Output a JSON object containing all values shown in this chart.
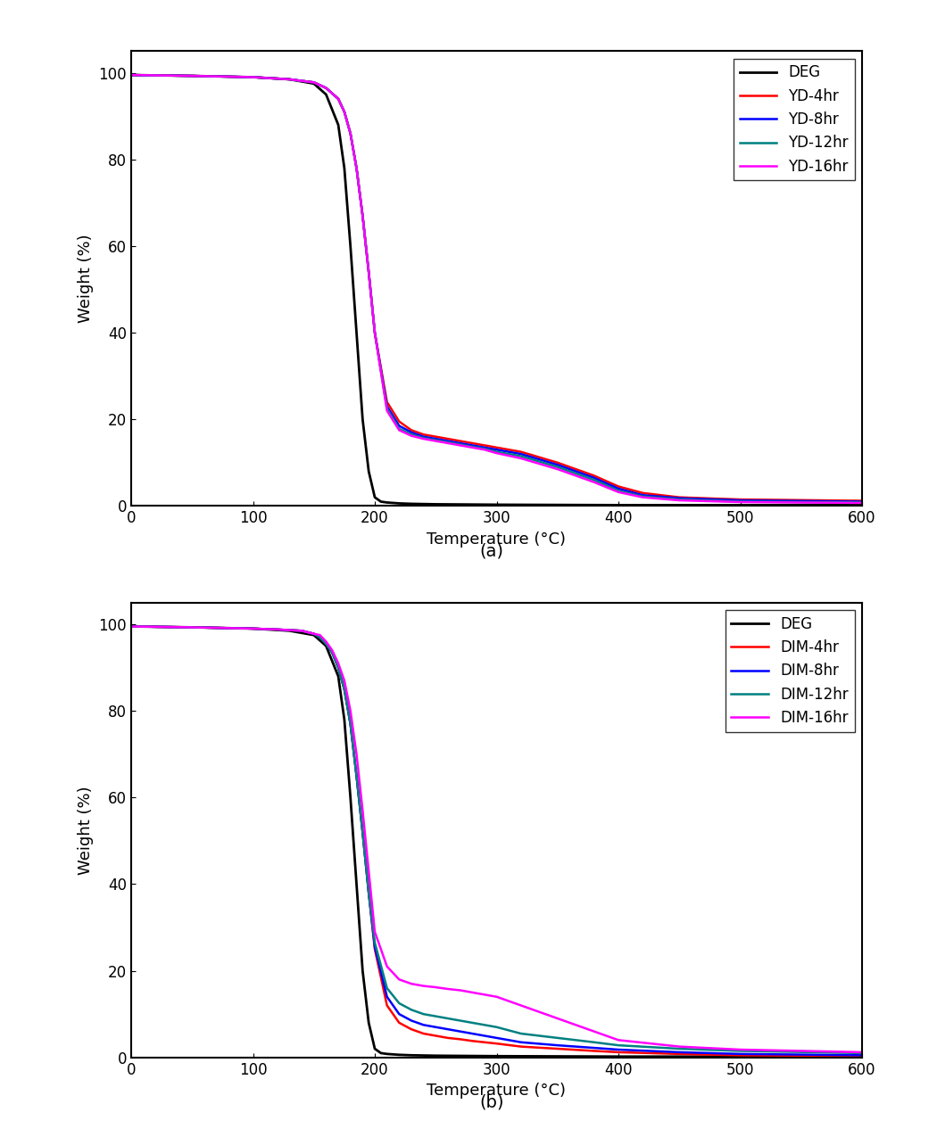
{
  "subplot_a": {
    "title": "(a)",
    "xlabel": "Temperature (°C)",
    "ylabel": "Weight (%)",
    "xlim": [
      0,
      600
    ],
    "ylim": [
      0,
      105
    ],
    "yticks": [
      0,
      20,
      40,
      60,
      80,
      100
    ],
    "xticks": [
      0,
      100,
      200,
      300,
      400,
      500,
      600
    ],
    "legend": [
      "DEG",
      "YD-4hr",
      "YD-8hr",
      "YD-12hr",
      "YD-16hr"
    ],
    "colors": [
      "#000000",
      "#ff0000",
      "#0000ff",
      "#008080",
      "#ff00ff"
    ],
    "line_widths": [
      2.0,
      1.8,
      1.8,
      1.8,
      1.8
    ],
    "DEG": {
      "x": [
        0,
        50,
        100,
        130,
        150,
        160,
        170,
        175,
        180,
        185,
        190,
        195,
        200,
        205,
        210,
        220,
        230,
        250,
        300,
        400,
        500,
        600
      ],
      "y": [
        99.5,
        99.3,
        99.0,
        98.5,
        97.5,
        95.0,
        88.0,
        78.0,
        60.0,
        40.0,
        20.0,
        8.0,
        2.0,
        1.0,
        0.8,
        0.6,
        0.5,
        0.4,
        0.3,
        0.2,
        0.2,
        0.2
      ]
    },
    "YD4": {
      "x": [
        0,
        50,
        100,
        130,
        150,
        160,
        170,
        175,
        180,
        185,
        190,
        195,
        200,
        210,
        220,
        230,
        240,
        250,
        260,
        270,
        280,
        290,
        300,
        320,
        350,
        380,
        400,
        420,
        450,
        500,
        600
      ],
      "y": [
        99.5,
        99.3,
        99.0,
        98.5,
        97.8,
        96.5,
        94.0,
        91.0,
        86.0,
        78.0,
        67.0,
        54.0,
        40.0,
        24.0,
        19.5,
        17.5,
        16.5,
        16.0,
        15.5,
        15.0,
        14.5,
        14.0,
        13.5,
        12.5,
        10.0,
        7.0,
        4.5,
        3.0,
        2.0,
        1.5,
        1.2
      ]
    },
    "YD8": {
      "x": [
        0,
        50,
        100,
        130,
        150,
        160,
        170,
        175,
        180,
        185,
        190,
        195,
        200,
        210,
        220,
        230,
        240,
        250,
        260,
        270,
        280,
        290,
        300,
        320,
        350,
        380,
        400,
        420,
        450,
        500,
        600
      ],
      "y": [
        99.5,
        99.3,
        99.0,
        98.5,
        97.8,
        96.5,
        94.0,
        91.0,
        86.0,
        78.0,
        67.0,
        54.0,
        40.0,
        23.0,
        18.5,
        17.0,
        16.0,
        15.5,
        15.0,
        14.5,
        14.0,
        13.5,
        13.0,
        12.0,
        9.5,
        6.5,
        4.0,
        2.5,
        1.8,
        1.3,
        1.0
      ]
    },
    "YD12": {
      "x": [
        0,
        50,
        100,
        130,
        150,
        160,
        170,
        175,
        180,
        185,
        190,
        195,
        200,
        210,
        220,
        230,
        240,
        250,
        260,
        270,
        280,
        290,
        300,
        320,
        350,
        380,
        400,
        420,
        450,
        500,
        600
      ],
      "y": [
        99.5,
        99.3,
        99.0,
        98.5,
        97.8,
        96.5,
        94.0,
        91.0,
        86.0,
        78.0,
        67.0,
        54.0,
        40.0,
        22.5,
        17.8,
        16.5,
        15.7,
        15.2,
        14.7,
        14.2,
        13.7,
        13.2,
        12.5,
        11.5,
        9.0,
        6.0,
        3.5,
        2.2,
        1.5,
        1.0,
        0.8
      ]
    },
    "YD16": {
      "x": [
        0,
        50,
        100,
        130,
        150,
        160,
        170,
        175,
        180,
        185,
        190,
        195,
        200,
        210,
        220,
        230,
        240,
        250,
        260,
        270,
        280,
        290,
        300,
        320,
        350,
        380,
        400,
        420,
        450,
        500,
        600
      ],
      "y": [
        99.5,
        99.3,
        99.0,
        98.5,
        97.8,
        96.5,
        94.0,
        91.0,
        86.0,
        78.0,
        67.0,
        54.0,
        40.0,
        22.0,
        17.5,
        16.2,
        15.5,
        15.0,
        14.5,
        14.0,
        13.5,
        13.0,
        12.2,
        11.0,
        8.5,
        5.5,
        3.2,
        2.0,
        1.3,
        0.9,
        0.7
      ]
    }
  },
  "subplot_b": {
    "title": "(b)",
    "xlabel": "Temperature (°C)",
    "ylabel": "Weight (%)",
    "xlim": [
      0,
      600
    ],
    "ylim": [
      0,
      105
    ],
    "yticks": [
      0,
      20,
      40,
      60,
      80,
      100
    ],
    "xticks": [
      0,
      100,
      200,
      300,
      400,
      500,
      600
    ],
    "legend": [
      "DEG",
      "DIM-4hr",
      "DIM-8hr",
      "DIM-12hr",
      "DIM-16hr"
    ],
    "colors": [
      "#000000",
      "#ff0000",
      "#0000ff",
      "#008080",
      "#ff00ff"
    ],
    "line_widths": [
      2.0,
      1.8,
      1.8,
      1.8,
      1.8
    ],
    "DEG": {
      "x": [
        0,
        50,
        100,
        130,
        150,
        160,
        170,
        175,
        180,
        185,
        190,
        195,
        200,
        205,
        210,
        220,
        230,
        250,
        300,
        400,
        500,
        600
      ],
      "y": [
        99.5,
        99.3,
        99.0,
        98.5,
        97.5,
        95.0,
        88.0,
        78.0,
        60.0,
        40.0,
        20.0,
        8.0,
        2.0,
        1.0,
        0.8,
        0.6,
        0.5,
        0.4,
        0.3,
        0.2,
        0.2,
        0.2
      ]
    },
    "DIM4": {
      "x": [
        0,
        50,
        100,
        120,
        140,
        150,
        155,
        160,
        165,
        170,
        175,
        180,
        185,
        190,
        195,
        200,
        210,
        220,
        230,
        240,
        250,
        260,
        270,
        280,
        290,
        300,
        320,
        350,
        380,
        400,
        450,
        500,
        600
      ],
      "y": [
        99.5,
        99.3,
        99.0,
        98.8,
        98.5,
        97.8,
        97.0,
        95.5,
        93.5,
        90.0,
        85.0,
        77.0,
        65.0,
        52.0,
        38.0,
        25.0,
        12.0,
        8.0,
        6.5,
        5.5,
        5.0,
        4.5,
        4.2,
        3.8,
        3.5,
        3.2,
        2.5,
        2.0,
        1.5,
        1.2,
        0.8,
        0.5,
        0.3
      ]
    },
    "DIM8": {
      "x": [
        0,
        50,
        100,
        120,
        140,
        150,
        155,
        160,
        165,
        170,
        175,
        180,
        185,
        190,
        195,
        200,
        210,
        220,
        230,
        240,
        250,
        260,
        270,
        280,
        290,
        300,
        320,
        350,
        380,
        400,
        450,
        500,
        600
      ],
      "y": [
        99.5,
        99.3,
        99.0,
        98.8,
        98.5,
        97.8,
        97.0,
        95.5,
        93.5,
        90.0,
        85.0,
        77.0,
        65.0,
        52.0,
        38.0,
        25.5,
        14.0,
        10.0,
        8.5,
        7.5,
        7.0,
        6.5,
        6.0,
        5.5,
        5.0,
        4.5,
        3.5,
        2.8,
        2.2,
        1.8,
        1.2,
        0.8,
        0.5
      ]
    },
    "DIM12": {
      "x": [
        0,
        50,
        100,
        120,
        140,
        150,
        155,
        160,
        165,
        170,
        175,
        180,
        185,
        190,
        195,
        200,
        210,
        220,
        230,
        240,
        250,
        260,
        270,
        280,
        290,
        300,
        320,
        350,
        380,
        400,
        450,
        500,
        600
      ],
      "y": [
        99.5,
        99.3,
        99.0,
        98.8,
        98.5,
        97.8,
        97.0,
        95.5,
        93.5,
        90.0,
        85.0,
        77.0,
        65.0,
        52.0,
        38.0,
        26.5,
        16.0,
        12.5,
        11.0,
        10.0,
        9.5,
        9.0,
        8.5,
        8.0,
        7.5,
        7.0,
        5.5,
        4.5,
        3.5,
        2.8,
        2.0,
        1.5,
        1.0
      ]
    },
    "DIM16": {
      "x": [
        0,
        50,
        100,
        120,
        140,
        150,
        155,
        160,
        165,
        170,
        175,
        180,
        185,
        190,
        195,
        200,
        210,
        220,
        230,
        240,
        250,
        260,
        270,
        280,
        290,
        300,
        320,
        350,
        380,
        400,
        450,
        500,
        600
      ],
      "y": [
        99.5,
        99.3,
        99.0,
        98.8,
        98.5,
        97.8,
        97.5,
        96.0,
        94.0,
        91.0,
        87.0,
        80.0,
        70.0,
        57.0,
        43.0,
        29.0,
        21.0,
        18.0,
        17.0,
        16.5,
        16.2,
        15.8,
        15.5,
        15.0,
        14.5,
        14.0,
        12.0,
        9.0,
        6.0,
        4.0,
        2.5,
        1.8,
        1.2
      ]
    }
  },
  "background_color": "#ffffff",
  "font_size": 13,
  "label_font_size": 13,
  "tick_font_size": 12
}
